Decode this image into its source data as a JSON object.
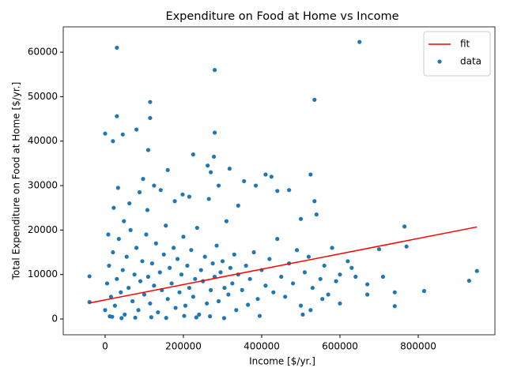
{
  "chart_data": {
    "type": "scatter",
    "title": "Expenditure on Food at Home vs Income",
    "x_label": "Income [$/yr.]",
    "y_label": "Total Expenditure on Food at Home [$/yr.]",
    "xlim": [
      -107000,
      996000
    ],
    "ylim": [
      -3550,
      65700
    ],
    "xticks": [
      0,
      200000,
      400000,
      600000,
      800000
    ],
    "yticks": [
      0,
      10000,
      20000,
      30000,
      40000,
      50000,
      60000
    ],
    "legend": "upper right",
    "series": [
      {
        "name": "fit",
        "type": "line",
        "color": "#ff0000",
        "x": [
          -40000,
          950000
        ],
        "values": [
          3600,
          20700
        ]
      },
      {
        "name": "data",
        "type": "scatter",
        "color": "#1f77b4",
        "x": [
          0,
          5000,
          10000,
          15000,
          20000,
          25000,
          30000,
          35000,
          40000,
          45000,
          50000,
          55000,
          60000,
          65000,
          70000,
          75000,
          80000,
          85000,
          90000,
          95000,
          100000,
          105000,
          110000,
          115000,
          120000,
          125000,
          130000,
          135000,
          140000,
          145000,
          150000,
          155000,
          160000,
          165000,
          170000,
          175000,
          180000,
          185000,
          190000,
          195000,
          200000,
          205000,
          210000,
          215000,
          220000,
          225000,
          230000,
          235000,
          240000,
          245000,
          250000,
          255000,
          260000,
          265000,
          270000,
          275000,
          280000,
          285000,
          290000,
          295000,
          300000,
          305000,
          310000,
          315000,
          320000,
          325000,
          330000,
          335000,
          340000,
          350000,
          360000,
          370000,
          380000,
          390000,
          400000,
          410000,
          420000,
          430000,
          440000,
          450000,
          460000,
          470000,
          480000,
          490000,
          500000,
          510000,
          520000,
          530000,
          540000,
          550000,
          560000,
          570000,
          580000,
          590000,
          600000,
          620000,
          640000,
          12000,
          8000,
          22000,
          33000,
          48000,
          62000,
          88000,
          97000,
          108000,
          125000,
          142000,
          160000,
          178000,
          198000,
          215000,
          262000,
          270000,
          278000,
          290000,
          318000,
          340000,
          355000,
          385000,
          410000,
          425000,
          440000,
          470000,
          500000,
          525000,
          535000,
          18000,
          42000,
          77000,
          118000,
          156000,
          202000,
          233000,
          268000,
          304000,
          365000,
          395000,
          505000,
          525000,
          555000,
          600000,
          630000,
          30000,
          650000,
          280000,
          535000,
          115000,
          30000,
          115000,
          80000,
          0,
          280000,
          20000,
          45000,
          110000,
          225000,
          -40000,
          -40000,
          950000,
          930000,
          815000,
          740000,
          740000,
          770000,
          765000,
          700000,
          670000,
          670000,
          710000
        ],
        "values": [
          2000,
          8000,
          12000,
          5000,
          15000,
          3000,
          9000,
          18000,
          6000,
          11000,
          1000,
          14000,
          7000,
          20000,
          4000,
          10000,
          16000,
          2000,
          8500,
          13000,
          5500,
          19000,
          9500,
          3500,
          12500,
          7500,
          17000,
          1500,
          10500,
          6500,
          14500,
          21000,
          4500,
          11500,
          8000,
          16000,
          2500,
          13500,
          6000,
          10000,
          18500,
          3000,
          12000,
          7000,
          15500,
          5000,
          9000,
          20500,
          1000,
          11000,
          8500,
          14000,
          3500,
          27000,
          6500,
          12500,
          9500,
          16500,
          4000,
          10500,
          13000,
          7000,
          22000,
          5500,
          11500,
          8000,
          14500,
          2000,
          10000,
          6500,
          12000,
          9000,
          15000,
          4500,
          11000,
          7500,
          13500,
          6000,
          18000,
          9500,
          5000,
          12500,
          8000,
          15500,
          3000,
          10500,
          14000,
          7000,
          23500,
          9000,
          12000,
          5500,
          16000,
          8500,
          10000,
          13000,
          9500,
          600,
          19000,
          25000,
          29500,
          22000,
          26000,
          28500,
          31500,
          24500,
          30000,
          29000,
          33500,
          26500,
          28000,
          27500,
          34500,
          33000,
          36500,
          30000,
          33800,
          25500,
          31000,
          30000,
          32500,
          32000,
          28800,
          29000,
          22500,
          32500,
          26500,
          500,
          200,
          300,
          400,
          250,
          700,
          350,
          600,
          200,
          3200,
          700,
          1000,
          2000,
          4500,
          3500,
          11500,
          61000,
          62300,
          56000,
          49300,
          48800,
          45600,
          45200,
          42600,
          41700,
          41900,
          40000,
          41500,
          38000,
          37000,
          9600,
          3800,
          10800,
          8600,
          6300,
          6000,
          2900,
          16300,
          20800,
          15700,
          7800,
          5500,
          9500
        ]
      }
    ]
  }
}
